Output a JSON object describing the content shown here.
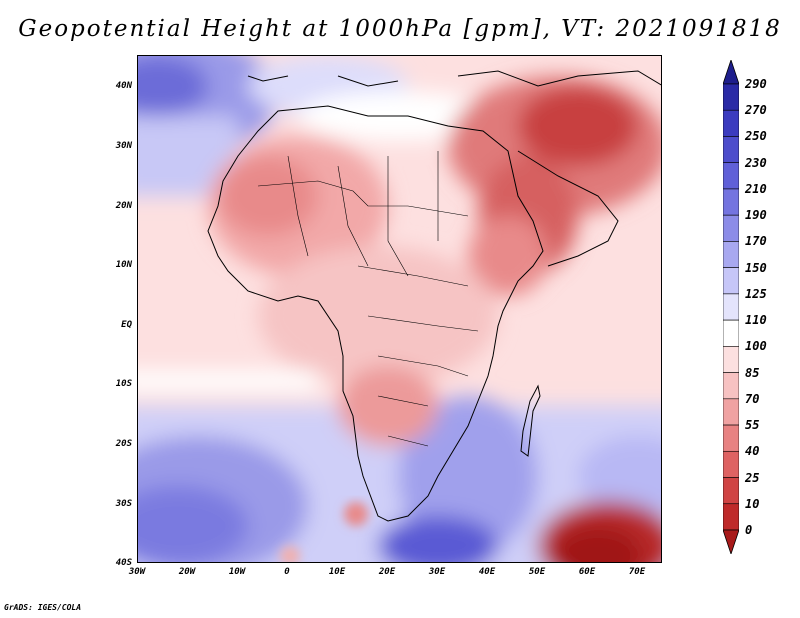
{
  "title": "Geopotential Height at 1000hPa [gpm], VT: 2021091818",
  "footer": "GrADS: IGES/COLA",
  "map": {
    "variable": "Geopotential Height",
    "level": "1000hPa",
    "units": "gpm",
    "valid_time": "2021091818",
    "lon_range": [
      -30,
      75
    ],
    "lat_range": [
      -40,
      45
    ],
    "lat_labels": [
      "40N",
      "30N",
      "20N",
      "10N",
      "EQ",
      "10S",
      "20S",
      "30S",
      "40S"
    ],
    "lon_labels": [
      "30W",
      "20W",
      "10W",
      "0",
      "10E",
      "20E",
      "30E",
      "40E",
      "50E",
      "60E",
      "70E"
    ]
  },
  "colorbar": {
    "labels": [
      "290",
      "270",
      "250",
      "230",
      "210",
      "190",
      "170",
      "150",
      "125",
      "110",
      "100",
      "85",
      "70",
      "55",
      "40",
      "25",
      "10",
      "0"
    ],
    "colors": [
      "#1e1e8c",
      "#2a2aa6",
      "#3b3bbf",
      "#4d4dcc",
      "#6060d8",
      "#7474e0",
      "#8c8ce8",
      "#a8a8f0",
      "#c6c6f8",
      "#e4e4fc",
      "#ffffff",
      "#fce0e0",
      "#f7c2c2",
      "#f0a2a2",
      "#e88282",
      "#de6262",
      "#d04444",
      "#bf2a2a",
      "#a81a1a"
    ]
  }
}
